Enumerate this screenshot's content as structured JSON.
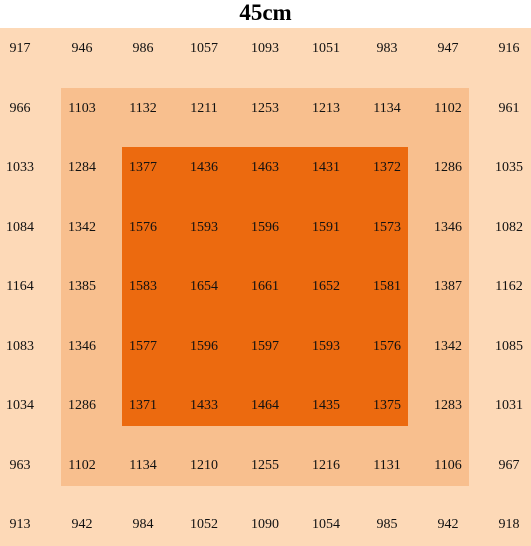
{
  "title": "45cm",
  "table": {
    "rows": [
      [
        917,
        946,
        986,
        1057,
        1093,
        1051,
        983,
        947,
        916
      ],
      [
        966,
        1103,
        1132,
        1211,
        1253,
        1213,
        1134,
        1102,
        961
      ],
      [
        1033,
        1284,
        1377,
        1436,
        1463,
        1431,
        1372,
        1286,
        1035
      ],
      [
        1084,
        1342,
        1576,
        1593,
        1596,
        1591,
        1573,
        1346,
        1082
      ],
      [
        1164,
        1385,
        1583,
        1654,
        1661,
        1652,
        1581,
        1387,
        1162
      ],
      [
        1083,
        1346,
        1577,
        1596,
        1597,
        1593,
        1576,
        1342,
        1085
      ],
      [
        1034,
        1286,
        1371,
        1433,
        1464,
        1435,
        1375,
        1283,
        1031
      ],
      [
        963,
        1102,
        1134,
        1210,
        1255,
        1216,
        1131,
        1106,
        967
      ],
      [
        913,
        942,
        984,
        1052,
        1090,
        1054,
        985,
        942,
        918
      ]
    ]
  }
}
